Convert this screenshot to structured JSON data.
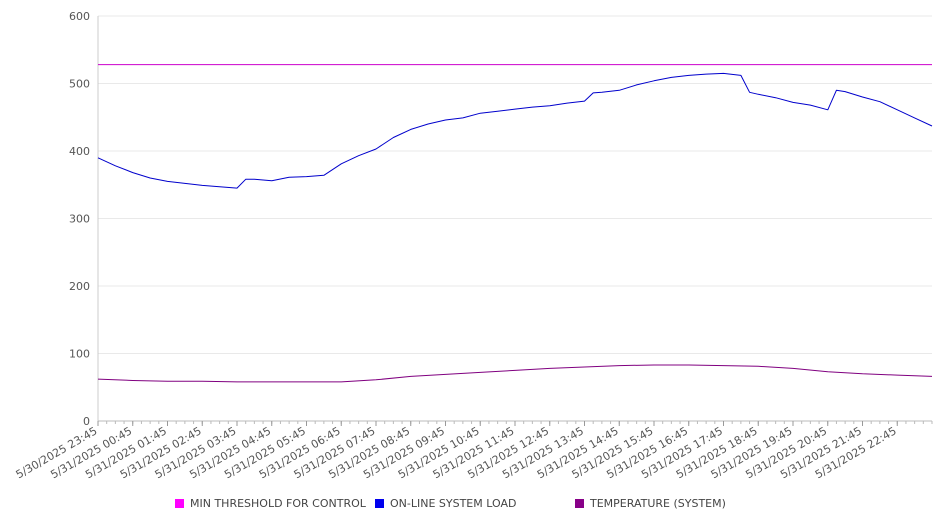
{
  "chart_data": {
    "type": "line",
    "title": "",
    "xlabel": "",
    "ylabel": "",
    "ylim": [
      0,
      600
    ],
    "y_ticks": [
      0,
      100,
      200,
      300,
      400,
      500,
      600
    ],
    "grid": "horizontal",
    "legend_position": "bottom",
    "x_tick_labels": [
      "5/30/2025 23:45",
      "5/31/2025 00:45",
      "5/31/2025 01:45",
      "5/31/2025 02:45",
      "5/31/2025 03:45",
      "5/31/2025 04:45",
      "5/31/2025 05:45",
      "5/31/2025 06:45",
      "5/31/2025 07:45",
      "5/31/2025 08:45",
      "5/31/2025 09:45",
      "5/31/2025 10:45",
      "5/31/2025 11:45",
      "5/31/2025 12:45",
      "5/31/2025 13:45",
      "5/31/2025 14:45",
      "5/31/2025 15:45",
      "5/31/2025 16:45",
      "5/31/2025 17:45",
      "5/31/2025 18:45",
      "5/31/2025 19:45",
      "5/31/2025 20:45",
      "5/31/2025 21:45",
      "5/31/2025 22:45"
    ],
    "series": [
      {
        "name": "MIN THRESHOLD FOR CONTROL",
        "color": "#cc00cc",
        "x": [
          "5/30/2025 23:45",
          "5/31/2025 23:45"
        ],
        "values": [
          528,
          528
        ]
      },
      {
        "name": "ON-LINE SYSTEM LOAD",
        "color": "#0000cc",
        "x": [
          "5/30/2025 23:45",
          "5/31/2025 00:15",
          "5/31/2025 00:45",
          "5/31/2025 01:15",
          "5/31/2025 01:45",
          "5/31/2025 02:15",
          "5/31/2025 02:45",
          "5/31/2025 03:15",
          "5/31/2025 03:45",
          "5/31/2025 04:00",
          "5/31/2025 04:15",
          "5/31/2025 04:45",
          "5/31/2025 05:15",
          "5/31/2025 05:45",
          "5/31/2025 06:15",
          "5/31/2025 06:45",
          "5/31/2025 07:15",
          "5/31/2025 07:45",
          "5/31/2025 08:15",
          "5/31/2025 08:45",
          "5/31/2025 09:15",
          "5/31/2025 09:45",
          "5/31/2025 10:15",
          "5/31/2025 10:45",
          "5/31/2025 11:15",
          "5/31/2025 11:45",
          "5/31/2025 12:15",
          "5/31/2025 12:45",
          "5/31/2025 13:15",
          "5/31/2025 13:45",
          "5/31/2025 14:00",
          "5/31/2025 14:15",
          "5/31/2025 14:45",
          "5/31/2025 15:15",
          "5/31/2025 15:45",
          "5/31/2025 16:15",
          "5/31/2025 16:45",
          "5/31/2025 17:15",
          "5/31/2025 17:45",
          "5/31/2025 18:15",
          "5/31/2025 18:30",
          "5/31/2025 18:45",
          "5/31/2025 19:15",
          "5/31/2025 19:45",
          "5/31/2025 20:15",
          "5/31/2025 20:45",
          "5/31/2025 21:00",
          "5/31/2025 21:15",
          "5/31/2025 21:45",
          "5/31/2025 22:15",
          "5/31/2025 22:45",
          "5/31/2025 23:15",
          "5/31/2025 23:45"
        ],
        "values": [
          390,
          378,
          368,
          360,
          355,
          352,
          349,
          347,
          345,
          358,
          358,
          356,
          361,
          362,
          364,
          381,
          393,
          403,
          420,
          432,
          440,
          446,
          449,
          456,
          459,
          462,
          465,
          467,
          471,
          474,
          486,
          487,
          490,
          498,
          504,
          509,
          512,
          514,
          515,
          512,
          487,
          484,
          479,
          472,
          468,
          461,
          490,
          488,
          480,
          473,
          461,
          449,
          437
        ]
      },
      {
        "name": "TEMPERATURE (SYSTEM)",
        "color": "#800080",
        "x": [
          "5/30/2025 23:45",
          "5/31/2025 00:45",
          "5/31/2025 01:45",
          "5/31/2025 02:45",
          "5/31/2025 03:45",
          "5/31/2025 04:45",
          "5/31/2025 05:45",
          "5/31/2025 06:45",
          "5/31/2025 07:45",
          "5/31/2025 08:45",
          "5/31/2025 09:45",
          "5/31/2025 10:45",
          "5/31/2025 11:45",
          "5/31/2025 12:45",
          "5/31/2025 13:45",
          "5/31/2025 14:45",
          "5/31/2025 15:45",
          "5/31/2025 16:45",
          "5/31/2025 17:45",
          "5/31/2025 18:45",
          "5/31/2025 19:45",
          "5/31/2025 20:45",
          "5/31/2025 21:45",
          "5/31/2025 22:45",
          "5/31/2025 23:45"
        ],
        "values": [
          62,
          60,
          59,
          59,
          58,
          58,
          58,
          58,
          61,
          66,
          69,
          72,
          75,
          78,
          80,
          82,
          83,
          83,
          82,
          81,
          78,
          73,
          70,
          68,
          66
        ]
      }
    ]
  }
}
